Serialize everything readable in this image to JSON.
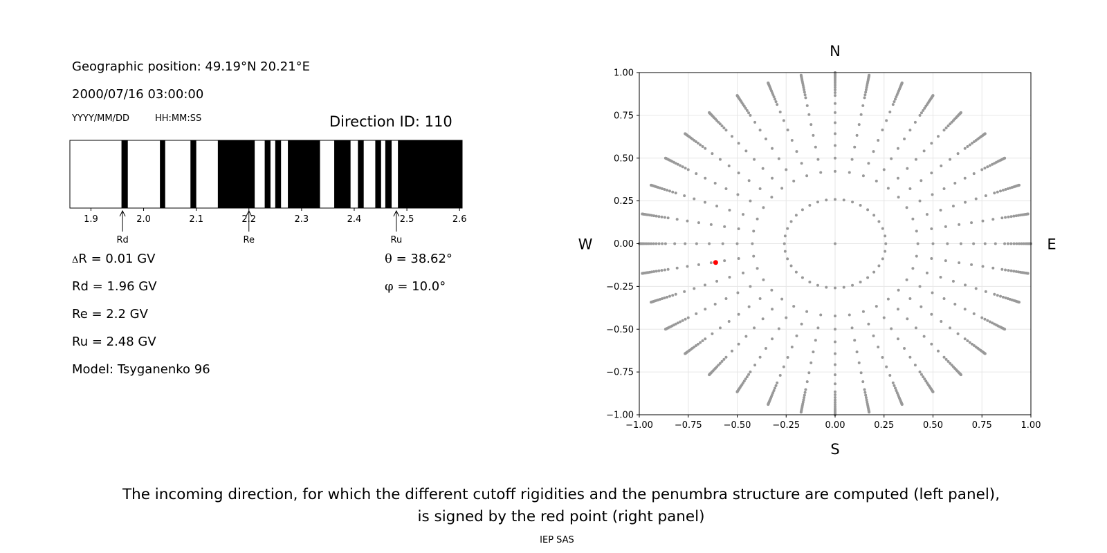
{
  "header": {
    "geo_position": "Geographic position: 49.19°N 20.21°E",
    "datetime": "2000/07/16 03:00:00",
    "date_format": "YYYY/MM/DD",
    "time_format": "HH:MM:SS",
    "direction_id": "Direction ID: 110"
  },
  "values": {
    "delta_symbol": "Δ",
    "delta_r": "R = 0.01 GV",
    "rd": "Rd = 1.96 GV",
    "re": "Re = 2.2 GV",
    "ru": "Ru = 2.48 GV",
    "model": "Model: Tsyganenko 96",
    "theta_symbol": "θ",
    "theta": " = 38.62°",
    "phi_symbol": "φ",
    "phi": " = 10.0°"
  },
  "caption": {
    "line1": "The incoming direction, for which the different cutoff rigidities and the penumbra structure are computed (left panel),",
    "line2": "is signed by the red point (right panel)"
  },
  "footer": "IEP SAS",
  "chart_data": [
    {
      "type": "penumbra-bar",
      "xlim": [
        1.86,
        2.605
      ],
      "ticks": [
        1.9,
        2.0,
        2.1,
        2.2,
        2.3,
        2.4,
        2.5,
        2.6
      ],
      "tick_labels": [
        "1.9",
        "2.0",
        "2.1",
        "2.2",
        "2.3",
        "2.4",
        "2.5",
        "2.6"
      ],
      "forbidden_intervals": [
        [
          1.958,
          1.97
        ],
        [
          2.031,
          2.041
        ],
        [
          2.089,
          2.1
        ],
        [
          2.141,
          2.211
        ],
        [
          2.23,
          2.241
        ],
        [
          2.25,
          2.261
        ],
        [
          2.274,
          2.335
        ],
        [
          2.362,
          2.393
        ],
        [
          2.407,
          2.418
        ],
        [
          2.44,
          2.451
        ],
        [
          2.459,
          2.471
        ],
        [
          2.483,
          2.605
        ]
      ],
      "markers": [
        {
          "label": "Rd",
          "value": 1.96
        },
        {
          "label": "Re",
          "value": 2.2
        },
        {
          "label": "Ru",
          "value": 2.48
        }
      ],
      "colors": {
        "forbidden": "#000000",
        "allowed": "#ffffff"
      }
    },
    {
      "type": "scatter",
      "xlim": [
        -1.0,
        1.0
      ],
      "ylim": [
        -1.0,
        1.0
      ],
      "ticks": [
        -1.0,
        -0.75,
        -0.5,
        -0.25,
        0.0,
        0.25,
        0.5,
        0.75,
        1.0
      ],
      "x_tick_labels": [
        "−1.00",
        "−0.75",
        "−0.50",
        "−0.25",
        "0.00",
        "0.25",
        "0.50",
        "0.75",
        "1.00"
      ],
      "y_tick_labels": [
        "−1.00",
        "−0.75",
        "−0.50",
        "−0.25",
        "0.00",
        "0.25",
        "0.50",
        "0.75",
        "1.00"
      ],
      "direction_labels": {
        "north": "N",
        "south": "S",
        "west": "W",
        "east": "E"
      },
      "grid": true,
      "grid_points": {
        "description_free": true,
        "zenith_angles_deg": [
          0,
          15,
          25,
          30,
          35,
          40,
          45,
          50,
          55,
          60,
          62,
          64,
          66,
          68,
          70,
          72,
          74,
          76,
          78,
          80,
          82,
          84,
          86,
          88,
          90
        ],
        "azimuth_step_deg": 10,
        "color": "#999999"
      },
      "highlight_point": {
        "x": -0.61,
        "y": -0.11,
        "color": "#ff0000"
      }
    }
  ]
}
